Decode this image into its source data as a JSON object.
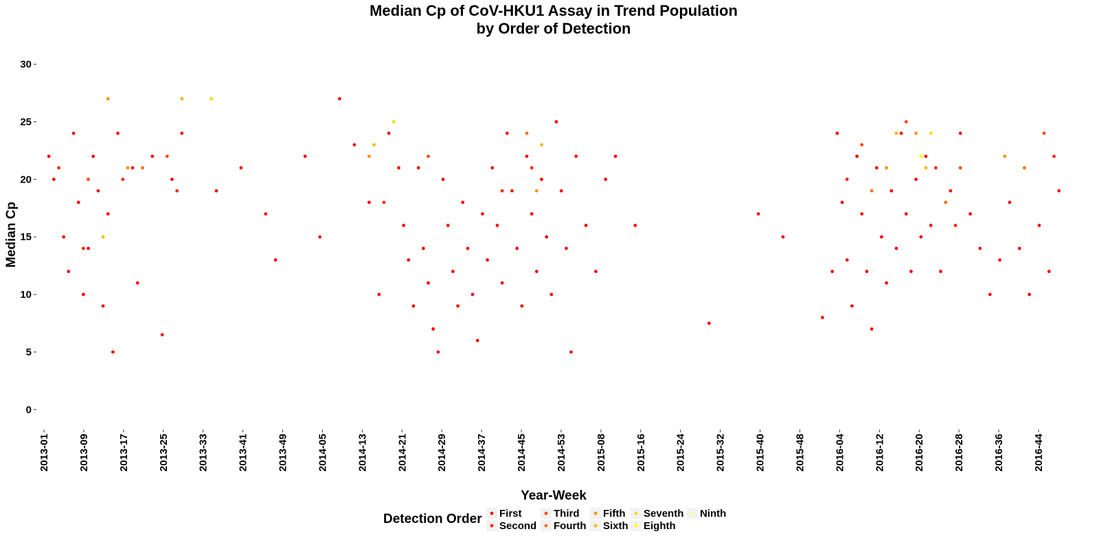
{
  "chart_data": {
    "type": "scatter",
    "title": "Median Cp of CoV-HKU1 Assay in Trend Population",
    "subtitle": "by Order of Detection",
    "xlabel": "Year-Week",
    "ylabel": "Median Cp",
    "x_tick_labels": [
      "2013-01",
      "2013-09",
      "2013-17",
      "2013-25",
      "2013-33",
      "2013-41",
      "2013-49",
      "2014-05",
      "2014-13",
      "2014-21",
      "2014-29",
      "2014-37",
      "2014-45",
      "2014-53",
      "2015-08",
      "2015-16",
      "2015-24",
      "2015-32",
      "2015-40",
      "2015-48",
      "2016-04",
      "2016-12",
      "2016-20",
      "2016-28",
      "2016-36",
      "2016-44"
    ],
    "x_range": [
      0,
      208
    ],
    "ylim": [
      -1.5,
      32
    ],
    "y_ticks": [
      0,
      5,
      10,
      15,
      20,
      25,
      30
    ],
    "grid": false,
    "legend": {
      "title": "Detection Order",
      "position": "bottom",
      "entries": [
        {
          "name": "First",
          "color": "#FF0000"
        },
        {
          "name": "Second",
          "color": "#FF2400"
        },
        {
          "name": "Third",
          "color": "#FF4800"
        },
        {
          "name": "Fourth",
          "color": "#FF6D00"
        },
        {
          "name": "Fifth",
          "color": "#FF9100"
        },
        {
          "name": "Sixth",
          "color": "#FFB600"
        },
        {
          "name": "Seventh",
          "color": "#FFDA00"
        },
        {
          "name": "Eighth",
          "color": "#FFFF00"
        },
        {
          "name": "Ninth",
          "color": "#FFFF80"
        }
      ]
    },
    "series": [
      {
        "name": "First",
        "color": "#FF0000",
        "points": [
          [
            1,
            22
          ],
          [
            2,
            20
          ],
          [
            4,
            15
          ],
          [
            5,
            12
          ],
          [
            6,
            24
          ],
          [
            7,
            18
          ],
          [
            8,
            10
          ],
          [
            9,
            14
          ],
          [
            10,
            22
          ],
          [
            11,
            19
          ],
          [
            12,
            9
          ],
          [
            13,
            17
          ],
          [
            14,
            5
          ],
          [
            15,
            24
          ],
          [
            18,
            21
          ],
          [
            19,
            11
          ],
          [
            22,
            22
          ],
          [
            24,
            6.5
          ],
          [
            26,
            20
          ],
          [
            28,
            24
          ],
          [
            35,
            19
          ],
          [
            40,
            21
          ],
          [
            45,
            17
          ],
          [
            47,
            13
          ],
          [
            53,
            22
          ],
          [
            56,
            15
          ],
          [
            60,
            27
          ],
          [
            63,
            23
          ],
          [
            66,
            18
          ],
          [
            68,
            10
          ],
          [
            70,
            24
          ],
          [
            72,
            21
          ],
          [
            73,
            16
          ],
          [
            74,
            13
          ],
          [
            75,
            9
          ],
          [
            76,
            21
          ],
          [
            77,
            14
          ],
          [
            78,
            11
          ],
          [
            79,
            7
          ],
          [
            80,
            5
          ],
          [
            81,
            20
          ],
          [
            82,
            16
          ],
          [
            83,
            12
          ],
          [
            84,
            9
          ],
          [
            85,
            18
          ],
          [
            86,
            14
          ],
          [
            87,
            10
          ],
          [
            88,
            6
          ],
          [
            89,
            17
          ],
          [
            90,
            13
          ],
          [
            91,
            21
          ],
          [
            92,
            16
          ],
          [
            93,
            11
          ],
          [
            94,
            24
          ],
          [
            95,
            19
          ],
          [
            96,
            14
          ],
          [
            97,
            9
          ],
          [
            98,
            22
          ],
          [
            99,
            17
          ],
          [
            100,
            12
          ],
          [
            101,
            20
          ],
          [
            102,
            15
          ],
          [
            103,
            10
          ],
          [
            104,
            25
          ],
          [
            105,
            19
          ],
          [
            106,
            14
          ],
          [
            107,
            5
          ],
          [
            108,
            22
          ],
          [
            110,
            16
          ],
          [
            112,
            12
          ],
          [
            114,
            20
          ],
          [
            116,
            22
          ],
          [
            120,
            16
          ],
          [
            135,
            7.5
          ],
          [
            145,
            17
          ],
          [
            150,
            15
          ],
          [
            158,
            8
          ],
          [
            160,
            12
          ],
          [
            161,
            24
          ],
          [
            162,
            18
          ],
          [
            163,
            13
          ],
          [
            164,
            9
          ],
          [
            165,
            22
          ],
          [
            166,
            17
          ],
          [
            167,
            12
          ],
          [
            168,
            7
          ],
          [
            169,
            21
          ],
          [
            170,
            15
          ],
          [
            171,
            11
          ],
          [
            172,
            19
          ],
          [
            173,
            14
          ],
          [
            174,
            24
          ],
          [
            175,
            17
          ],
          [
            176,
            12
          ],
          [
            177,
            20
          ],
          [
            178,
            15
          ],
          [
            179,
            22
          ],
          [
            180,
            16
          ],
          [
            182,
            12
          ],
          [
            184,
            19
          ],
          [
            186,
            24
          ],
          [
            188,
            17
          ],
          [
            190,
            14
          ],
          [
            192,
            10
          ],
          [
            194,
            13
          ],
          [
            196,
            18
          ],
          [
            198,
            14
          ],
          [
            200,
            10
          ],
          [
            202,
            16
          ],
          [
            204,
            12
          ],
          [
            206,
            19
          ]
        ]
      },
      {
        "name": "Second",
        "color": "#FF2400",
        "points": [
          [
            3,
            21
          ],
          [
            8,
            14
          ],
          [
            16,
            20
          ],
          [
            27,
            19
          ],
          [
            69,
            18
          ],
          [
            93,
            19
          ],
          [
            99,
            21
          ],
          [
            163,
            20
          ],
          [
            181,
            21
          ],
          [
            185,
            16
          ],
          [
            205,
            22
          ]
        ]
      },
      {
        "name": "Third",
        "color": "#FF4800",
        "points": [
          [
            9,
            20
          ],
          [
            25,
            22
          ],
          [
            78,
            22
          ],
          [
            166,
            23
          ],
          [
            175,
            25
          ],
          [
            186,
            21
          ],
          [
            203,
            24
          ]
        ]
      },
      {
        "name": "Fourth",
        "color": "#FF6D00",
        "points": [
          [
            20,
            21
          ],
          [
            98,
            24
          ],
          [
            168,
            19
          ],
          [
            183,
            18
          ],
          [
            199,
            21
          ]
        ]
      },
      {
        "name": "Fifth",
        "color": "#FF9100",
        "points": [
          [
            13,
            27
          ],
          [
            17,
            21
          ],
          [
            66,
            22
          ],
          [
            100,
            19
          ],
          [
            171,
            21
          ],
          [
            177,
            24
          ],
          [
            195,
            22
          ]
        ]
      },
      {
        "name": "Sixth",
        "color": "#FFB600",
        "points": [
          [
            12,
            15
          ],
          [
            28,
            27
          ],
          [
            67,
            23
          ],
          [
            101,
            23
          ],
          [
            173,
            24
          ],
          [
            179,
            21
          ]
        ]
      },
      {
        "name": "Seventh",
        "color": "#FFDA00",
        "points": [
          [
            34,
            27
          ],
          [
            71,
            25
          ],
          [
            180,
            24
          ]
        ]
      },
      {
        "name": "Eighth",
        "color": "#FFFF00",
        "points": [
          [
            178,
            22
          ]
        ]
      },
      {
        "name": "Ninth",
        "color": "#FFFF80",
        "points": []
      }
    ]
  }
}
